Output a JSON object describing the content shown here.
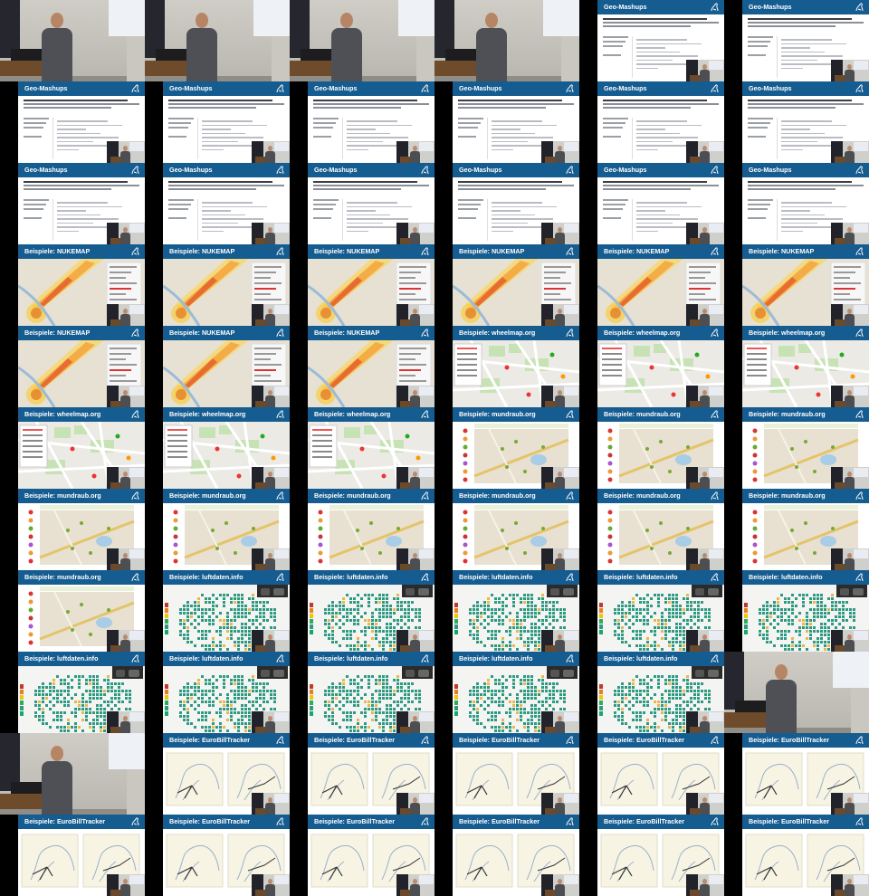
{
  "slide_titles": {
    "geo": "Geo-Mashups",
    "nuke": "Beispiele: NUKEMAP",
    "wheel": "Beispiele: wheelmap.org",
    "mund": "Beispiele: mundraub.org",
    "luft": "Beispiele: luftdaten.info",
    "euro": "Beispiele: EuroBillTracker"
  },
  "rows": [
    [
      "speaker",
      "speaker",
      "speaker",
      "speaker",
      "geo",
      "geo"
    ],
    [
      "geo",
      "geo",
      "geo",
      "geo",
      "geo",
      "geo"
    ],
    [
      "geo",
      "geo",
      "geo",
      "geo",
      "geo",
      "geo"
    ],
    [
      "nuke",
      "nuke",
      "nuke",
      "nuke",
      "nuke",
      "nuke"
    ],
    [
      "nuke",
      "nuke",
      "nuke",
      "wheel",
      "wheel",
      "wheel"
    ],
    [
      "wheel",
      "wheel",
      "wheel",
      "mund",
      "mund",
      "mund"
    ],
    [
      "mund",
      "mund",
      "mund",
      "mund",
      "mund",
      "mund"
    ],
    [
      "mund",
      "luft",
      "luft",
      "luft",
      "luft",
      "luft"
    ],
    [
      "luft",
      "luft",
      "luft",
      "luft",
      "luft",
      "speaker"
    ],
    [
      "speaker",
      "euro",
      "euro",
      "euro",
      "euro",
      "euro"
    ],
    [
      "euro",
      "euro",
      "euro",
      "euro",
      "euro",
      "euro"
    ]
  ],
  "colors": {
    "header_blue": "#155c91",
    "background": "#000000"
  },
  "icons": {
    "logo": "dragon-logo-icon"
  }
}
